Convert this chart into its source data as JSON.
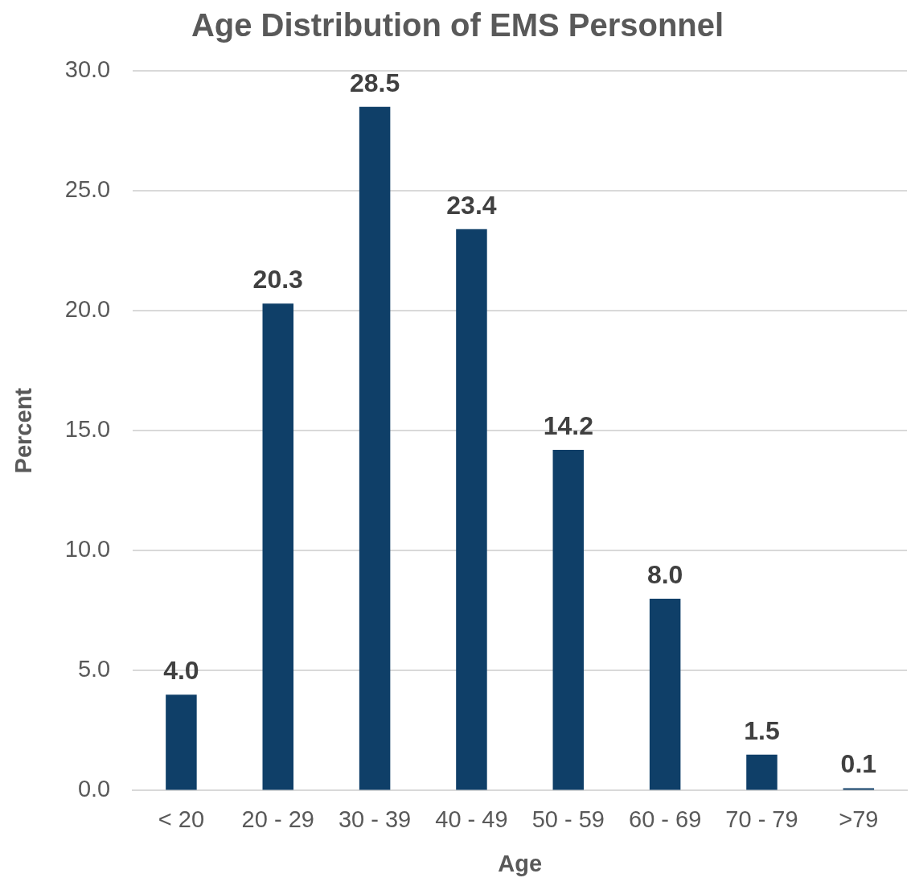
{
  "chart_data": {
    "type": "bar",
    "title": "Age Distribution of EMS Personnel",
    "xlabel": "Age",
    "ylabel": "Percent",
    "categories": [
      "< 20",
      "20 - 29",
      "30 - 39",
      "40 - 49",
      "50 - 59",
      "60 - 69",
      "70 - 79",
      ">79"
    ],
    "values": [
      4.0,
      20.3,
      28.5,
      23.4,
      14.2,
      8.0,
      1.5,
      0.1
    ],
    "value_labels": [
      "4.0",
      "20.3",
      "28.5",
      "23.4",
      "14.2",
      "8.0",
      "1.5",
      "0.1"
    ],
    "color": "#0f3f68",
    "ylim": [
      0,
      30
    ],
    "yticks": [
      {
        "value": 0,
        "label": "0.0"
      },
      {
        "value": 5,
        "label": "5.0"
      },
      {
        "value": 10,
        "label": "10.0"
      },
      {
        "value": 15,
        "label": "15.0"
      },
      {
        "value": 20,
        "label": "20.0"
      },
      {
        "value": 25,
        "label": "25.0"
      },
      {
        "value": 30,
        "label": "30.0"
      }
    ],
    "grid": "y",
    "legend": false
  }
}
